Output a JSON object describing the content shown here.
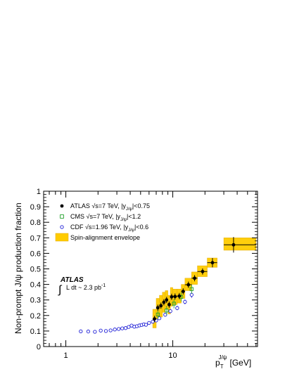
{
  "chart_data": {
    "type": "scatter",
    "xscale": "log",
    "xlim": [
      0.62,
      62
    ],
    "ylim": [
      0,
      1
    ],
    "ylabel": "Non-prompt J/ψ production fraction",
    "xlabel": {
      "main": "p",
      "sub": "T",
      "sup": "J/ψ",
      "unit": "[GeV]"
    },
    "x_tick_labels": [
      {
        "x": 1,
        "label": "1"
      },
      {
        "x": 10,
        "label": "10"
      }
    ],
    "y_tick_labels": [
      "0",
      "0.1",
      "0.2",
      "0.3",
      "0.4",
      "0.5",
      "0.6",
      "0.7",
      "0.8",
      "0.9",
      "1"
    ],
    "atlas_label": {
      "title": "ATLAS",
      "lumi": "L dt ~ 2.3 pb",
      "lumi_sup": "-1"
    },
    "legend": {
      "placement": "top-left",
      "entries": [
        {
          "key": "atlas",
          "text": "ATLAS √s=7 TeV,   |y",
          "sub": "J/ψ",
          "after": "|<0.75"
        },
        {
          "key": "cms",
          "text": "CMS √s=7 TeV,   |y",
          "sub": "J/ψ",
          "after": "|<1.2"
        },
        {
          "key": "cdf",
          "text": "CDF √s=1.96 TeV,   |y",
          "sub": "J/ψ",
          "after": "|<0.6"
        },
        {
          "key": "band",
          "text": "Spin-alignment envelope",
          "sub": "",
          "after": ""
        }
      ]
    },
    "colors": {
      "atlas": "#000000",
      "cms": "#22a02a",
      "cdf": "#1f1fd6",
      "band": "#ffcc00",
      "band_edge": "#e0a800"
    },
    "series": [
      {
        "key": "cdf",
        "points": [
          {
            "x": 1.38,
            "y": 0.098,
            "ey": 0.012
          },
          {
            "x": 1.62,
            "y": 0.097,
            "ey": 0.01
          },
          {
            "x": 1.87,
            "y": 0.095,
            "ey": 0.009
          },
          {
            "x": 2.12,
            "y": 0.103,
            "ey": 0.009
          },
          {
            "x": 2.37,
            "y": 0.1,
            "ey": 0.008
          },
          {
            "x": 2.62,
            "y": 0.104,
            "ey": 0.008
          },
          {
            "x": 2.87,
            "y": 0.11,
            "ey": 0.008
          },
          {
            "x": 3.12,
            "y": 0.113,
            "ey": 0.008
          },
          {
            "x": 3.37,
            "y": 0.117,
            "ey": 0.008
          },
          {
            "x": 3.62,
            "y": 0.119,
            "ey": 0.008
          },
          {
            "x": 3.87,
            "y": 0.126,
            "ey": 0.008
          },
          {
            "x": 4.12,
            "y": 0.135,
            "ey": 0.008
          },
          {
            "x": 4.37,
            "y": 0.128,
            "ey": 0.008
          },
          {
            "x": 4.62,
            "y": 0.131,
            "ey": 0.008
          },
          {
            "x": 4.87,
            "y": 0.136,
            "ey": 0.008
          },
          {
            "x": 5.12,
            "y": 0.139,
            "ey": 0.008
          },
          {
            "x": 5.37,
            "y": 0.143,
            "ey": 0.009
          },
          {
            "x": 5.62,
            "y": 0.14,
            "ey": 0.009
          },
          {
            "x": 6.0,
            "y": 0.152,
            "ey": 0.009
          },
          {
            "x": 6.5,
            "y": 0.16,
            "ey": 0.01
          },
          {
            "x": 7.0,
            "y": 0.168,
            "ey": 0.01
          },
          {
            "x": 7.5,
            "y": 0.182,
            "ey": 0.011
          },
          {
            "x": 8.5,
            "y": 0.205,
            "ey": 0.012
          },
          {
            "x": 9.5,
            "y": 0.228,
            "ey": 0.013
          },
          {
            "x": 11.0,
            "y": 0.248,
            "ey": 0.014
          },
          {
            "x": 13.0,
            "y": 0.288,
            "ey": 0.016
          },
          {
            "x": 15.0,
            "y": 0.333,
            "ey": 0.02
          }
        ]
      },
      {
        "key": "cms",
        "points": [
          {
            "x": 7.25,
            "y": 0.206,
            "ey": 0.03
          },
          {
            "x": 8.75,
            "y": 0.232,
            "ey": 0.03
          },
          {
            "x": 10.25,
            "y": 0.276,
            "ey": 0.03
          },
          {
            "x": 12.0,
            "y": 0.319,
            "ey": 0.03
          },
          {
            "x": 15.0,
            "y": 0.37,
            "ey": 0.03
          }
        ]
      },
      {
        "key": "atlas",
        "points": [
          {
            "x": 6.75,
            "y": 0.178,
            "exl": 0.25,
            "exh": 0.25,
            "ey": 0.02,
            "bl": 0.12,
            "bh": 0.24
          },
          {
            "x": 7.25,
            "y": 0.25,
            "exl": 0.25,
            "exh": 0.25,
            "ey": 0.02,
            "bl": 0.18,
            "bh": 0.31
          },
          {
            "x": 7.75,
            "y": 0.263,
            "exl": 0.25,
            "exh": 0.25,
            "ey": 0.02,
            "bl": 0.19,
            "bh": 0.33
          },
          {
            "x": 8.25,
            "y": 0.285,
            "exl": 0.25,
            "exh": 0.25,
            "ey": 0.02,
            "bl": 0.22,
            "bh": 0.35
          },
          {
            "x": 8.75,
            "y": 0.3,
            "exl": 0.25,
            "exh": 0.25,
            "ey": 0.02,
            "bl": 0.24,
            "bh": 0.36
          },
          {
            "x": 9.25,
            "y": 0.27,
            "exl": 0.25,
            "exh": 0.25,
            "ey": 0.02,
            "bl": 0.21,
            "bh": 0.33
          },
          {
            "x": 9.75,
            "y": 0.32,
            "exl": 0.25,
            "exh": 0.25,
            "ey": 0.02,
            "bl": 0.26,
            "bh": 0.38
          },
          {
            "x": 10.5,
            "y": 0.322,
            "exl": 0.5,
            "exh": 0.5,
            "ey": 0.02,
            "bl": 0.27,
            "bh": 0.37
          },
          {
            "x": 11.5,
            "y": 0.325,
            "exl": 0.5,
            "exh": 0.5,
            "ey": 0.02,
            "bl": 0.28,
            "bh": 0.37
          },
          {
            "x": 12.5,
            "y": 0.355,
            "exl": 0.5,
            "exh": 0.5,
            "ey": 0.02,
            "bl": 0.31,
            "bh": 0.4
          },
          {
            "x": 14.0,
            "y": 0.398,
            "exl": 1.0,
            "exh": 1.0,
            "ey": 0.02,
            "bl": 0.36,
            "bh": 0.44
          },
          {
            "x": 16.0,
            "y": 0.44,
            "exl": 1.0,
            "exh": 1.0,
            "ey": 0.02,
            "bl": 0.4,
            "bh": 0.48
          },
          {
            "x": 19.0,
            "y": 0.483,
            "exl": 2.0,
            "exh": 2.0,
            "ey": 0.02,
            "bl": 0.45,
            "bh": 0.52
          },
          {
            "x": 23.5,
            "y": 0.54,
            "exl": 2.5,
            "exh": 2.5,
            "ey": 0.03,
            "bl": 0.51,
            "bh": 0.57
          },
          {
            "x": 37.0,
            "y": 0.655,
            "exl": 7.0,
            "exh": 23.0,
            "ey": 0.05,
            "bl": 0.62,
            "bh": 0.7
          }
        ]
      }
    ]
  }
}
